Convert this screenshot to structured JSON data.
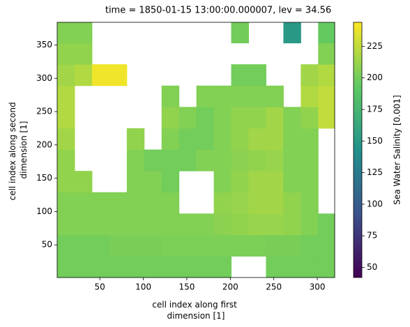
{
  "chart_data": {
    "type": "heatmap",
    "title": "time = 1850-01-15 13:00:00.000007, lev = 34.56",
    "xlabel": [
      "cell index along first",
      "dimension [1]"
    ],
    "ylabel": [
      "cell index along second",
      "dimension [1]"
    ],
    "colorbar_label": "Sea Water Salinity [0.001]",
    "colormap": "viridis",
    "x_edges": [
      1,
      21,
      41,
      61,
      81,
      101,
      121,
      141,
      161,
      181,
      201,
      221,
      241,
      261,
      281,
      301,
      320
    ],
    "y_edges": [
      1,
      33,
      65,
      97,
      129,
      161,
      193,
      225,
      257,
      289,
      321,
      353,
      384
    ],
    "z": [
      [
        200,
        200,
        200,
        200,
        200,
        200,
        200,
        200,
        200,
        200,
        null,
        null,
        200,
        200,
        200,
        200
      ],
      [
        200,
        200,
        200,
        202,
        202,
        202,
        203,
        203,
        203,
        203,
        203,
        203,
        202,
        202,
        200,
        200
      ],
      [
        205,
        205,
        205,
        205,
        205,
        205,
        205,
        205,
        205,
        208,
        210,
        212,
        212,
        210,
        205,
        200
      ],
      [
        205,
        205,
        205,
        205,
        205,
        205,
        205,
        null,
        null,
        210,
        212,
        215,
        215,
        210,
        205,
        null
      ],
      [
        210,
        210,
        null,
        null,
        205,
        205,
        200,
        null,
        null,
        205,
        210,
        215,
        215,
        205,
        205,
        null
      ],
      [
        210,
        null,
        null,
        null,
        205,
        200,
        200,
        200,
        205,
        205,
        208,
        210,
        212,
        205,
        205,
        null
      ],
      [
        215,
        null,
        null,
        null,
        210,
        null,
        205,
        200,
        200,
        205,
        210,
        215,
        215,
        205,
        205,
        null
      ],
      [
        220,
        null,
        null,
        null,
        null,
        null,
        210,
        205,
        200,
        205,
        210,
        210,
        215,
        205,
        210,
        225
      ],
      [
        220,
        null,
        null,
        null,
        null,
        null,
        205,
        null,
        205,
        205,
        205,
        205,
        205,
        null,
        220,
        225
      ],
      [
        215,
        220,
        240,
        240,
        null,
        null,
        null,
        null,
        null,
        null,
        200,
        200,
        null,
        null,
        215,
        220
      ],
      [
        210,
        210,
        null,
        null,
        null,
        null,
        null,
        null,
        null,
        null,
        null,
        null,
        null,
        null,
        null,
        205
      ],
      [
        205,
        205,
        null,
        null,
        null,
        null,
        null,
        null,
        null,
        null,
        200,
        null,
        null,
        150,
        null,
        195
      ]
    ],
    "xlim": [
      1,
      320
    ],
    "xticks": [
      50,
      100,
      150,
      200,
      250,
      300
    ],
    "ylim": [
      1,
      384
    ],
    "yticks": [
      50,
      100,
      150,
      200,
      250,
      300,
      350
    ],
    "clim": [
      42,
      244
    ],
    "cticks": [
      50,
      75,
      100,
      125,
      150,
      175,
      200,
      225
    ]
  }
}
